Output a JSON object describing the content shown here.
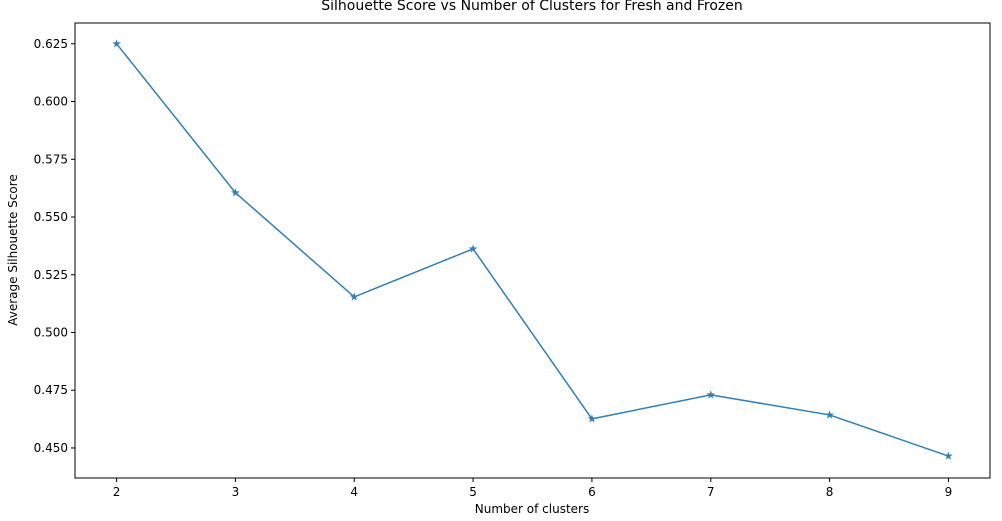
{
  "chart_data": {
    "type": "line",
    "title": "Silhouette Score vs Number of Clusters for Fresh and Frozen",
    "x_label": "Number of clusters",
    "y_label": "Average Silhouette Score",
    "x": [
      2,
      3,
      4,
      5,
      6,
      7,
      8,
      9
    ],
    "series": [
      {
        "color": "#2f7fb8",
        "values": [
          0.625,
          0.5605,
          0.5154,
          0.5362,
          0.4626,
          0.473,
          0.4643,
          0.4465
        ]
      }
    ],
    "xlim": [
      1.65,
      9.35
    ],
    "ylim": [
      0.437,
      0.634
    ],
    "xticks": [
      2,
      3,
      4,
      5,
      6,
      7,
      8,
      9
    ],
    "yticks": [
      {
        "value": 0.45,
        "label": "0.450"
      },
      {
        "value": 0.475,
        "label": "0.475"
      },
      {
        "value": 0.5,
        "label": "0.500"
      },
      {
        "value": 0.525,
        "label": "0.525"
      },
      {
        "value": 0.55,
        "label": "0.550"
      },
      {
        "value": 0.575,
        "label": "0.575"
      },
      {
        "value": 0.6,
        "label": "0.600"
      },
      {
        "value": 0.625,
        "label": "0.625"
      }
    ],
    "marker": "star"
  }
}
